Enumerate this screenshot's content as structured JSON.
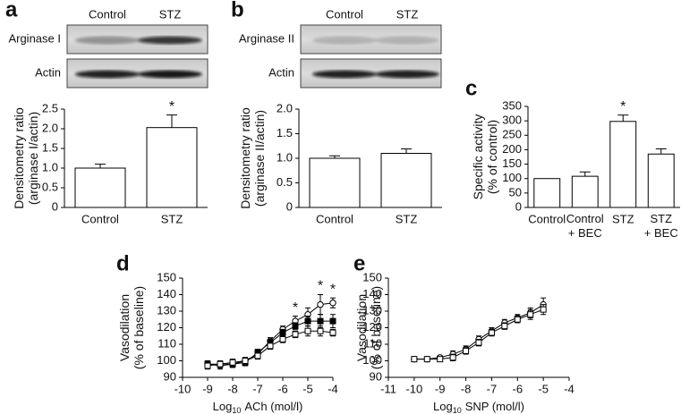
{
  "chart_data": [
    {
      "type": "bar",
      "label": "a",
      "blot": {
        "lanes": [
          "Control",
          "STZ"
        ],
        "rows": [
          "Arginase I",
          "Actin"
        ]
      },
      "y_label": [
        "Densitometry ratio",
        "(arginase I/actin)"
      ],
      "categories": [
        "Control",
        "STZ"
      ],
      "values": [
        1.0,
        2.03
      ],
      "errors": [
        0.1,
        0.32
      ],
      "color": "#ffffff",
      "edgecolor": "#000000",
      "ylim": [
        0,
        2.5
      ],
      "yticks": [
        0,
        0.5,
        {
          "value": 1,
          "label": "1.0"
        },
        1.5,
        {
          "value": 2,
          "label": "2.0"
        },
        2.5
      ],
      "annotations": [
        {
          "x": "STZ",
          "text": "*"
        }
      ]
    },
    {
      "type": "bar",
      "label": "b",
      "blot": {
        "lanes": [
          "Control",
          "STZ"
        ],
        "rows": [
          "Arginase II",
          "Actin"
        ]
      },
      "y_label": [
        "Densitometry ratio",
        "(arginase II/actin)"
      ],
      "categories": [
        "Control",
        "STZ"
      ],
      "values": [
        1.0,
        1.1
      ],
      "errors": [
        0.05,
        0.09
      ],
      "color": "#ffffff",
      "edgecolor": "#000000",
      "ylim": [
        0,
        2.0
      ],
      "yticks": [
        0,
        0.5,
        {
          "value": 1,
          "label": "1.0"
        },
        1.5,
        {
          "value": 2,
          "label": "2.0"
        }
      ]
    },
    {
      "type": "bar",
      "label": "c",
      "y_label": [
        "Specific activity",
        "(% of control)"
      ],
      "categories": [
        "Control",
        [
          "Control",
          "+ BEC"
        ],
        "STZ",
        [
          "STZ",
          "+ BEC"
        ]
      ],
      "values": [
        100,
        108,
        298,
        185
      ],
      "errors": [
        0,
        15,
        22,
        18
      ],
      "color": "#ffffff",
      "edgecolor": "#000000",
      "ylim": [
        0,
        350
      ],
      "yticks": [
        0,
        50,
        100,
        150,
        200,
        250,
        300,
        350
      ],
      "annotations": [
        {
          "x": "STZ",
          "text": "*"
        }
      ]
    },
    {
      "type": "line",
      "label": "d",
      "y_label": [
        "Vasodilation",
        "(% of baseline)"
      ],
      "x_label": [
        "Log",
        "10",
        "ACh (mol/l)"
      ],
      "x": [
        -9,
        -8.5,
        -8,
        -7.5,
        -7,
        -6.5,
        -6,
        -5.5,
        -5,
        -4.5,
        -4
      ],
      "series": [
        {
          "color": "#000000",
          "marker": "open-circle",
          "values": [
            98,
            97,
            98,
            100,
            104,
            112,
            119,
            124,
            128,
            134,
            135
          ],
          "errors": [
            2,
            2,
            2,
            2,
            2,
            2,
            2,
            3,
            4,
            6,
            3
          ]
        },
        {
          "color": "#000000",
          "marker": "filled-square",
          "values": [
            98,
            98,
            98,
            99,
            105,
            111,
            117,
            121,
            124,
            124,
            124
          ],
          "errors": [
            2,
            2,
            2,
            2,
            2,
            2,
            2,
            2,
            3,
            4,
            4
          ]
        },
        {
          "color": "#000000",
          "marker": "open-square",
          "values": [
            97,
            98,
            99,
            100,
            103,
            109,
            113,
            116,
            118,
            118,
            117
          ],
          "errors": [
            2,
            2,
            2,
            2,
            2,
            2,
            2,
            2,
            3,
            3,
            2
          ]
        }
      ],
      "xlim": [
        -10,
        -4
      ],
      "xticks": [
        -10,
        -9,
        -8,
        -7,
        -6,
        -5,
        -4
      ],
      "ylim": [
        90,
        150
      ],
      "yticks": [
        90,
        100,
        110,
        120,
        130,
        140,
        150
      ],
      "annotations": [
        {
          "x": -5.5,
          "text": "*"
        },
        {
          "x": -4.5,
          "text": "*"
        },
        {
          "x": -4,
          "text": "*"
        }
      ]
    },
    {
      "type": "line",
      "label": "e",
      "y_label": [
        "Vasodilation",
        "(% of baseline)"
      ],
      "x_label": [
        "Log",
        "10",
        "SNP (mol/l)"
      ],
      "x": [
        -10,
        -9.5,
        -9,
        -8.5,
        -8,
        -7.5,
        -7,
        -6.5,
        -6,
        -5.5,
        -5
      ],
      "series": [
        {
          "color": "#000000",
          "marker": "open-circle",
          "values": [
            101,
            101,
            102,
            104,
            107,
            113,
            118,
            123,
            126,
            129,
            134
          ],
          "errors": [
            1,
            1,
            1,
            2,
            2,
            2,
            2,
            2,
            2,
            3,
            4
          ]
        },
        {
          "color": "#000000",
          "marker": "open-square",
          "values": [
            101,
            101,
            101,
            102,
            106,
            111,
            117,
            121,
            125,
            128,
            131
          ],
          "errors": [
            1,
            1,
            1,
            2,
            2,
            2,
            2,
            2,
            2,
            3,
            3
          ]
        }
      ],
      "xlim": [
        -11,
        -4
      ],
      "xticks": [
        -11,
        -10,
        -9,
        -8,
        -7,
        -6,
        -5,
        -4
      ],
      "ylim": [
        90,
        150
      ],
      "yticks": [
        90,
        100,
        110,
        120,
        130,
        140,
        150
      ]
    }
  ]
}
